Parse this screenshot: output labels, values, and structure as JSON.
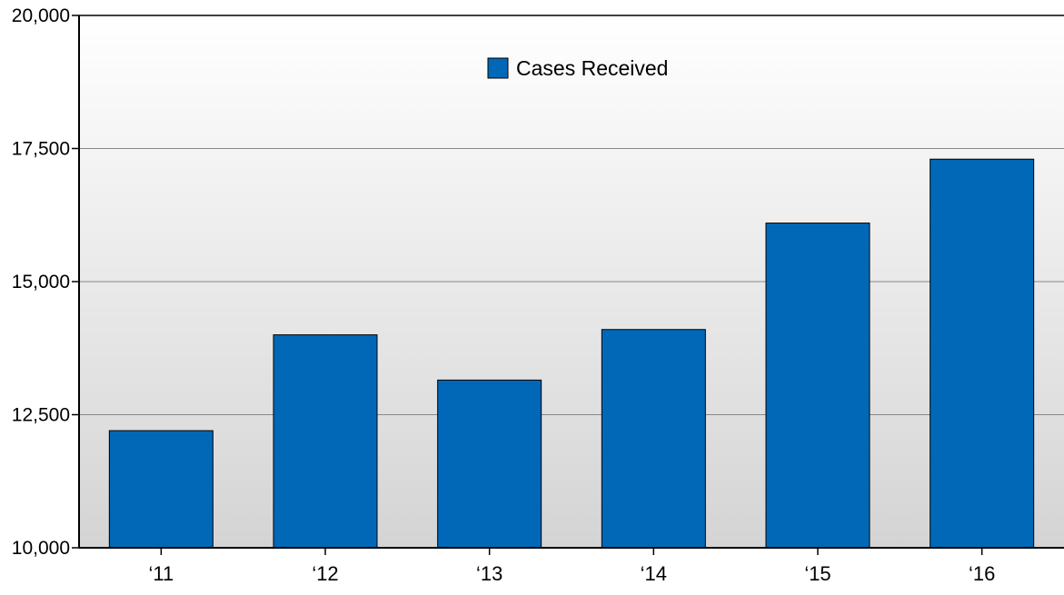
{
  "chart_data": {
    "type": "bar",
    "title": "",
    "xlabel": "",
    "ylabel": "",
    "categories": [
      "‘11",
      "‘12",
      "‘13",
      "‘14",
      "‘15",
      "‘16"
    ],
    "series": [
      {
        "name": "Cases Received",
        "values": [
          12200,
          14000,
          13150,
          14100,
          16100,
          17300
        ],
        "color": "#0068b7"
      }
    ],
    "ylim": [
      10000,
      20000
    ],
    "yticks": [
      10000,
      12500,
      15000,
      17500,
      20000
    ],
    "ytick_labels": [
      "10,000",
      "12,500",
      "15,000",
      "17,500",
      "20,000"
    ],
    "grid": true,
    "legend": {
      "position": "top-center",
      "entries": [
        "Cases Received"
      ]
    },
    "colors": {
      "bar": "#0068b7",
      "bar_stroke": "#000000",
      "plot_background_top": "#ffffff",
      "plot_background_bottom": "#d4d4d4",
      "gridline": "#888888",
      "axis": "#000000",
      "text": "#000000"
    }
  }
}
